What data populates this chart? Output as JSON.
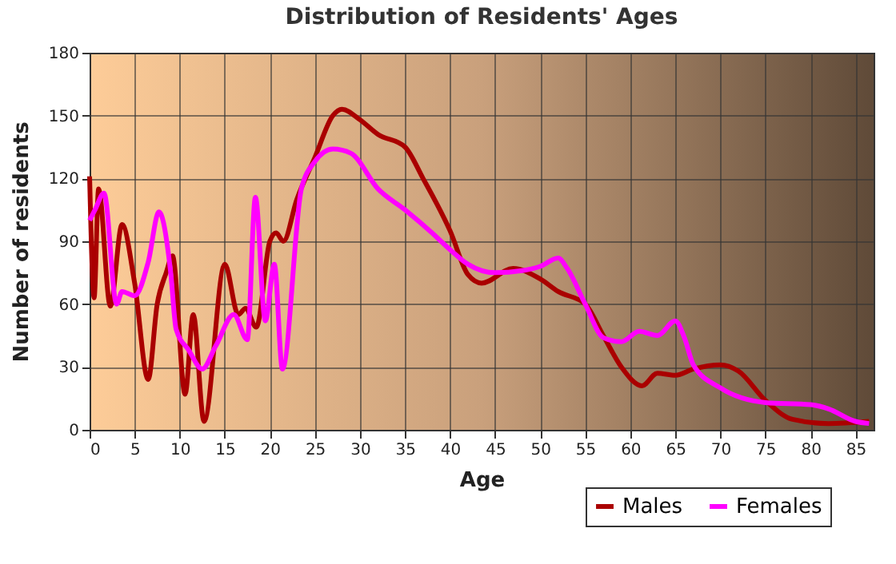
{
  "chart_data": {
    "type": "line",
    "title": "Distribution of Residents' Ages",
    "xlabel": "Age",
    "ylabel": "Number of residents",
    "xlim": [
      0,
      87
    ],
    "ylim": [
      0,
      180
    ],
    "xticks": [
      0,
      5,
      10,
      15,
      20,
      25,
      30,
      35,
      40,
      45,
      50,
      55,
      60,
      65,
      70,
      75,
      80,
      85
    ],
    "yticks": [
      0,
      30,
      60,
      90,
      120,
      150,
      180
    ],
    "grid": true,
    "legend": "bottom right",
    "series": [
      {
        "name": "Males",
        "color": "#aa0000",
        "x": [
          0,
          0.5,
          1,
          2.3,
          3.6,
          5,
          6.5,
          7.5,
          8.5,
          9.2,
          10.6,
          11.5,
          12.7,
          15,
          16.5,
          17.3,
          18.5,
          20,
          20.7,
          21.5,
          23,
          25,
          27,
          28,
          30,
          32,
          35,
          37,
          40,
          42,
          43.5,
          47,
          50,
          52,
          55,
          57,
          59,
          61.3,
          63,
          65,
          67,
          70,
          72,
          75,
          78,
          82,
          86.5
        ],
        "values": [
          121,
          63,
          115,
          59,
          98,
          70,
          24,
          60,
          75,
          83,
          17,
          55,
          4,
          79,
          55,
          58,
          49,
          90,
          94,
          90,
          110,
          130,
          150,
          153,
          148,
          141,
          135,
          120,
          95,
          74,
          70,
          77,
          72,
          66,
          60,
          45,
          30,
          21,
          27,
          26,
          29,
          31,
          28,
          14,
          5,
          3,
          4
        ]
      },
      {
        "name": "Females",
        "color": "#ff00ff",
        "x": [
          0,
          0.6,
          1.6,
          3,
          3.6,
          5,
          6.5,
          7.7,
          9,
          9.6,
          11,
          12.5,
          14,
          16,
          17.5,
          18.4,
          19.5,
          20.5,
          21.4,
          23.5,
          25,
          27,
          29,
          32,
          35,
          38,
          40,
          42,
          45,
          48,
          50,
          52,
          53,
          55,
          57,
          59,
          61,
          63,
          65,
          66,
          67,
          70,
          75,
          80,
          82,
          85,
          86.5
        ],
        "values": [
          100,
          105,
          113,
          60,
          66,
          64,
          80,
          104,
          75,
          48,
          38,
          29,
          40,
          55,
          43,
          111,
          52,
          79,
          29,
          115,
          128,
          134,
          132,
          115,
          105,
          94,
          86,
          79,
          75,
          76,
          78,
          82,
          77,
          60,
          44,
          42,
          47,
          45,
          52,
          44,
          31,
          20,
          13,
          12,
          10,
          4,
          3
        ]
      }
    ]
  }
}
